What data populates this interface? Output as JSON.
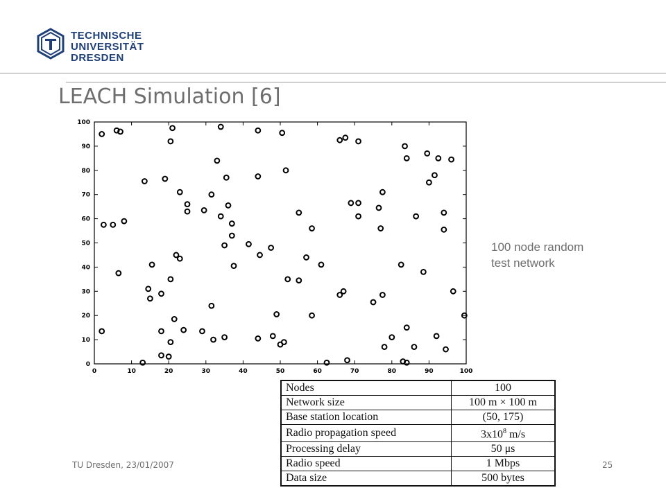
{
  "header": {
    "logo_lines": [
      "TECHNISCHE",
      "UNIVERSITÄT",
      "DRESDEN"
    ]
  },
  "slide": {
    "title": "LEACH Simulation [6]",
    "annotation_lines": [
      "100 node random",
      "test network"
    ]
  },
  "footer": {
    "left": "TU Dresden, 23/01/2007",
    "page": "25"
  },
  "colors": {
    "logo": "#1f3f78",
    "text_gray": "#6e6e6e",
    "marker": "#000000"
  },
  "chart_data": {
    "type": "scatter",
    "xlim": [
      0,
      100
    ],
    "ylim": [
      0,
      100
    ],
    "xticks": [
      0,
      10,
      20,
      30,
      40,
      50,
      60,
      70,
      80,
      90,
      100
    ],
    "yticks": [
      0,
      10,
      20,
      30,
      40,
      50,
      60,
      70,
      80,
      90,
      100
    ],
    "grid": false,
    "points": [
      [
        2,
        95
      ],
      [
        6,
        96.5
      ],
      [
        7,
        96
      ],
      [
        21,
        97.5
      ],
      [
        20.5,
        92
      ],
      [
        34,
        98
      ],
      [
        44,
        96.5
      ],
      [
        50.5,
        95.5
      ],
      [
        66,
        92.5
      ],
      [
        67.5,
        93.5
      ],
      [
        71,
        92
      ],
      [
        33,
        84
      ],
      [
        51.5,
        80
      ],
      [
        83.5,
        90
      ],
      [
        89.5,
        87
      ],
      [
        92.5,
        85
      ],
      [
        96,
        84.5
      ],
      [
        84,
        85
      ],
      [
        13.5,
        75.5
      ],
      [
        19,
        76.5
      ],
      [
        35.5,
        77
      ],
      [
        44,
        77.5
      ],
      [
        90,
        75
      ],
      [
        91.5,
        78
      ],
      [
        23,
        71
      ],
      [
        31.5,
        70
      ],
      [
        77.5,
        71
      ],
      [
        25,
        66
      ],
      [
        25,
        63
      ],
      [
        29.5,
        63.5
      ],
      [
        36,
        65.5
      ],
      [
        34,
        61
      ],
      [
        37,
        58
      ],
      [
        55,
        62.5
      ],
      [
        69,
        66.5
      ],
      [
        71,
        66.5
      ],
      [
        71,
        61
      ],
      [
        76.5,
        64.5
      ],
      [
        86.5,
        61
      ],
      [
        94,
        62.5
      ],
      [
        2.5,
        57.5
      ],
      [
        5,
        57.5
      ],
      [
        8,
        59
      ],
      [
        58.5,
        56
      ],
      [
        77,
        56
      ],
      [
        94,
        55.5
      ],
      [
        35,
        49
      ],
      [
        37,
        53
      ],
      [
        41.5,
        49.5
      ],
      [
        47.5,
        48
      ],
      [
        15.5,
        41
      ],
      [
        22,
        45
      ],
      [
        23,
        43.5
      ],
      [
        37.5,
        40.5
      ],
      [
        44.5,
        45
      ],
      [
        57,
        44
      ],
      [
        61,
        41
      ],
      [
        82.5,
        41
      ],
      [
        88.5,
        38
      ],
      [
        6.5,
        37.5
      ],
      [
        20.5,
        35
      ],
      [
        52,
        35
      ],
      [
        55,
        34.5
      ],
      [
        14.5,
        31
      ],
      [
        15,
        27
      ],
      [
        18,
        29
      ],
      [
        31.5,
        24
      ],
      [
        58.5,
        20
      ],
      [
        66,
        28.5
      ],
      [
        67,
        30
      ],
      [
        75,
        25.5
      ],
      [
        77.5,
        28.5
      ],
      [
        96.5,
        30
      ],
      [
        99.5,
        20
      ],
      [
        21.5,
        18.5
      ],
      [
        49,
        20.5
      ],
      [
        2,
        13.5
      ],
      [
        18,
        13.5
      ],
      [
        24,
        14
      ],
      [
        20.5,
        9
      ],
      [
        29,
        13.5
      ],
      [
        32,
        10
      ],
      [
        35,
        11
      ],
      [
        44,
        10.5
      ],
      [
        48,
        11.5
      ],
      [
        50,
        8
      ],
      [
        51,
        9
      ],
      [
        80,
        11
      ],
      [
        84,
        15
      ],
      [
        92,
        11.5
      ],
      [
        78,
        7
      ],
      [
        86,
        7
      ],
      [
        94.5,
        6
      ],
      [
        18,
        3.5
      ],
      [
        20,
        3
      ],
      [
        13,
        0.5
      ],
      [
        62.5,
        0.5
      ],
      [
        68,
        1.5
      ],
      [
        83,
        1
      ],
      [
        84,
        0.5
      ]
    ]
  },
  "table": {
    "rows": [
      {
        "label": "Nodes",
        "value": "100"
      },
      {
        "label": "Network size",
        "value": "100 m × 100 m"
      },
      {
        "label": "Base station location",
        "value": "(50, 175)"
      },
      {
        "label": "Radio propagation speed",
        "value": "3x10",
        "value_sup": "8",
        "value_after": " m/s"
      },
      {
        "label": "Processing delay",
        "value": "50 μs"
      },
      {
        "label": "Radio speed",
        "value": "1 Mbps"
      },
      {
        "label": "Data size",
        "value": "500 bytes"
      }
    ]
  }
}
